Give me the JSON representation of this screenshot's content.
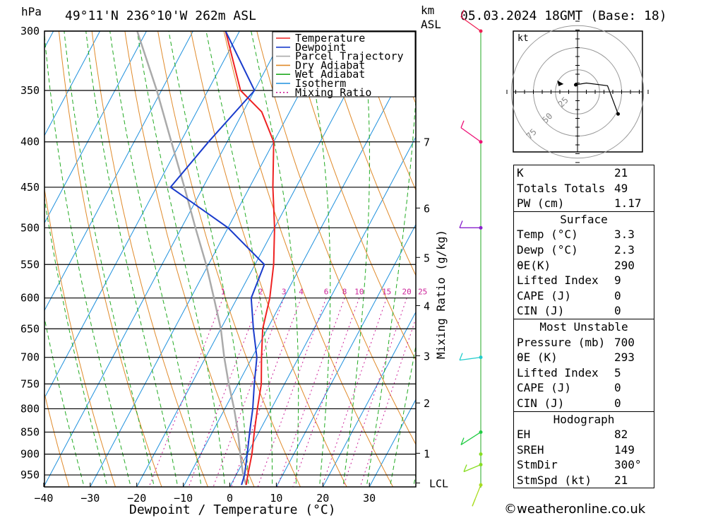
{
  "header": {
    "hpa_label": "hPa",
    "location": "49°11'N  236°10'W  262m  ASL",
    "km_label": "km",
    "asl_label": "ASL",
    "datetime": "05.03.2024  18GMT  (Base: 18)"
  },
  "colors": {
    "temperature": "#ee2222",
    "dewpoint": "#1a3ccc",
    "parcel": "#aaaaaa",
    "dry_adiabat": "#e08a2a",
    "wet_adiabat": "#22aa22",
    "isotherm": "#1e90dd",
    "mixing_ratio": "#cc2299",
    "wind_hodo": "#22bb22"
  },
  "chart_data": {
    "type": "line",
    "title": "49°11'N  236°10'W  262m  ASL",
    "xlabel": "Dewpoint / Temperature (°C)",
    "ylabel": "hPa",
    "xlim": [
      -40,
      40
    ],
    "ylim": [
      300,
      980
    ],
    "x_ticks": [
      -40,
      -30,
      -20,
      -10,
      0,
      10,
      20,
      30
    ],
    "x_tick_labels": [
      "−40",
      "−30",
      "−20",
      "−10",
      "0",
      "10",
      "20",
      "30"
    ],
    "pressure_levels": [
      300,
      350,
      400,
      450,
      500,
      550,
      600,
      650,
      700,
      750,
      800,
      850,
      900,
      950
    ],
    "legend": [
      "Temperature",
      "Dewpoint",
      "Parcel Trajectory",
      "Dry Adiabat",
      "Wet Adiabat",
      "Isotherm",
      "Mixing Ratio"
    ],
    "legend_position": "top-right",
    "series": [
      {
        "name": "Temperature",
        "points": [
          [
            3.3,
            975
          ],
          [
            2.5,
            950
          ],
          [
            1,
            900
          ],
          [
            -1,
            850
          ],
          [
            -3,
            800
          ],
          [
            -5,
            750
          ],
          [
            -8,
            700
          ],
          [
            -11,
            650
          ],
          [
            -13,
            600
          ],
          [
            -16,
            550
          ],
          [
            -20,
            500
          ],
          [
            -25,
            450
          ],
          [
            -30,
            400
          ],
          [
            -36,
            370
          ],
          [
            -43,
            350
          ],
          [
            -53,
            300
          ]
        ]
      },
      {
        "name": "Dewpoint",
        "points": [
          [
            2.3,
            975
          ],
          [
            1.8,
            950
          ],
          [
            0,
            900
          ],
          [
            -2,
            850
          ],
          [
            -4,
            800
          ],
          [
            -6.5,
            750
          ],
          [
            -9,
            700
          ],
          [
            -13,
            650
          ],
          [
            -17,
            600
          ],
          [
            -18,
            550
          ],
          [
            -30,
            500
          ],
          [
            -47,
            450
          ],
          [
            -44,
            400
          ],
          [
            -40,
            350
          ],
          [
            -53,
            300
          ]
        ]
      },
      {
        "name": "Parcel Trajectory",
        "points": [
          [
            3.3,
            975
          ],
          [
            1.5,
            950
          ],
          [
            -1.5,
            900
          ],
          [
            -4.5,
            850
          ],
          [
            -8,
            800
          ],
          [
            -12,
            750
          ],
          [
            -16,
            700
          ],
          [
            -20,
            650
          ],
          [
            -25,
            600
          ],
          [
            -30.5,
            550
          ],
          [
            -37,
            500
          ],
          [
            -44,
            450
          ],
          [
            -52,
            400
          ],
          [
            -61,
            350
          ],
          [
            -72,
            300
          ]
        ]
      }
    ],
    "mixing_ratio_labels": [
      "1",
      "2",
      "3",
      "4",
      "6",
      "8",
      "10",
      "15",
      "20",
      "25"
    ],
    "mixing_ratio_values": [
      1,
      2,
      3,
      4,
      6,
      8,
      10,
      15,
      20,
      25
    ],
    "mixing_ratio_axis_label": "Mixing Ratio (g/kg)",
    "km_ticks": [
      {
        "label": "7",
        "p": 400
      },
      {
        "label": "6",
        "p": 475
      },
      {
        "label": "5",
        "p": 540
      },
      {
        "label": "4",
        "p": 612
      },
      {
        "label": "3",
        "p": 697
      },
      {
        "label": "2",
        "p": 788
      },
      {
        "label": "1",
        "p": 898
      }
    ],
    "lcl_label": "LCL",
    "lcl_pressure": 970,
    "hodograph": {
      "unit_label": "kt",
      "ring_labels": [
        "25",
        "50",
        "75"
      ],
      "points": [
        [
          -2,
          8
        ],
        [
          10,
          10
        ],
        [
          34,
          7
        ],
        [
          46,
          -25
        ]
      ],
      "storm_motion": {
        "dir_deg": 300,
        "speed_kt": 21
      }
    }
  },
  "indices": {
    "rows": [
      {
        "label": "K",
        "value": "21"
      },
      {
        "label": "Totals Totals",
        "value": "49"
      },
      {
        "label": "PW (cm)",
        "value": "1.17"
      }
    ]
  },
  "surface": {
    "title": "Surface",
    "rows": [
      {
        "label": "Temp (°C)",
        "value": "3.3"
      },
      {
        "label": "Dewp (°C)",
        "value": "2.3"
      },
      {
        "label": "θE(K)",
        "value": "290"
      },
      {
        "label": "Lifted Index",
        "value": "9"
      },
      {
        "label": "CAPE (J)",
        "value": "0"
      },
      {
        "label": "CIN (J)",
        "value": "0"
      }
    ]
  },
  "most_unstable": {
    "title": "Most Unstable",
    "rows": [
      {
        "label": "Pressure (mb)",
        "value": "700"
      },
      {
        "label": "θE (K)",
        "value": "293"
      },
      {
        "label": "Lifted Index",
        "value": "5"
      },
      {
        "label": "CAPE (J)",
        "value": "0"
      },
      {
        "label": "CIN (J)",
        "value": "0"
      }
    ]
  },
  "hodograph_table": {
    "title": "Hodograph",
    "rows": [
      {
        "label": "EH",
        "value": "82"
      },
      {
        "label": "SREH",
        "value": "149"
      },
      {
        "label": "StmDir",
        "value": "300°"
      },
      {
        "label": "StmSpd (kt)",
        "value": "21"
      }
    ]
  },
  "footer": {
    "credit": "©weatheronline.co.uk"
  }
}
